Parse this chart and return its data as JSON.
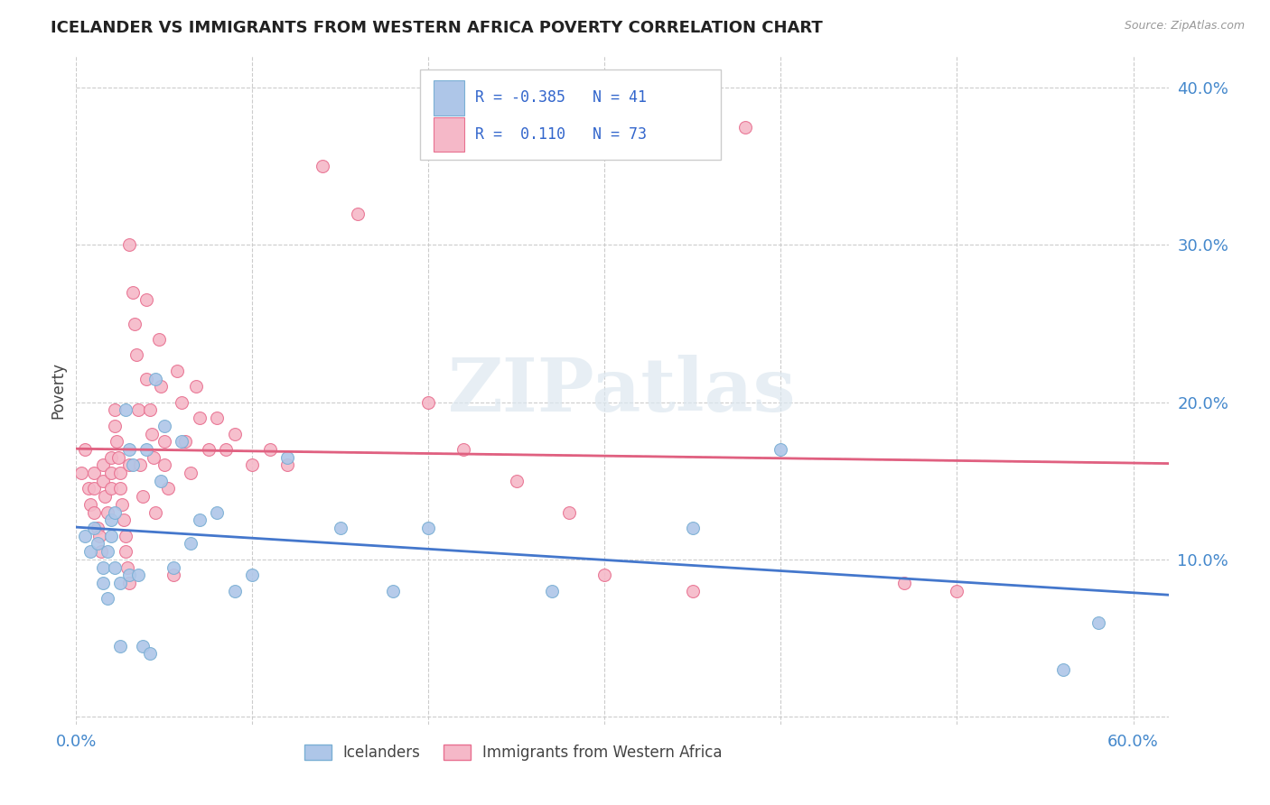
{
  "title": "ICELANDER VS IMMIGRANTS FROM WESTERN AFRICA POVERTY CORRELATION CHART",
  "source": "Source: ZipAtlas.com",
  "ylabel": "Poverty",
  "xlim": [
    0.0,
    0.62
  ],
  "ylim": [
    -0.005,
    0.42
  ],
  "x_ticks": [
    0.0,
    0.1,
    0.2,
    0.3,
    0.4,
    0.5,
    0.6
  ],
  "y_ticks": [
    0.0,
    0.1,
    0.2,
    0.3,
    0.4
  ],
  "x_tick_labels": [
    "0.0%",
    "",
    "",
    "",
    "",
    "",
    "60.0%"
  ],
  "y_tick_labels": [
    "",
    "10.0%",
    "20.0%",
    "30.0%",
    "40.0%"
  ],
  "background_color": "#ffffff",
  "grid_color": "#cccccc",
  "watermark": "ZIPatlas",
  "icelanders_color": "#aec6e8",
  "immigrants_color": "#f5b8c8",
  "icelanders_edge": "#7aafd4",
  "immigrants_edge": "#e87090",
  "ice_line_color": "#4477cc",
  "imm_line_color": "#e06080",
  "imm_dash_color": "#e0b0c0",
  "R_icelanders": -0.385,
  "N_icelanders": 41,
  "R_immigrants": 0.11,
  "N_immigrants": 73,
  "legend_labels": [
    "Icelanders",
    "Immigrants from Western Africa"
  ],
  "icelanders_x": [
    0.005,
    0.008,
    0.01,
    0.012,
    0.015,
    0.015,
    0.018,
    0.018,
    0.02,
    0.02,
    0.022,
    0.022,
    0.025,
    0.025,
    0.028,
    0.03,
    0.03,
    0.032,
    0.035,
    0.038,
    0.04,
    0.042,
    0.045,
    0.048,
    0.05,
    0.055,
    0.06,
    0.065,
    0.07,
    0.08,
    0.09,
    0.1,
    0.12,
    0.15,
    0.18,
    0.2,
    0.27,
    0.35,
    0.4,
    0.56,
    0.58
  ],
  "icelanders_y": [
    0.115,
    0.105,
    0.12,
    0.11,
    0.095,
    0.085,
    0.105,
    0.075,
    0.125,
    0.115,
    0.13,
    0.095,
    0.085,
    0.045,
    0.195,
    0.17,
    0.09,
    0.16,
    0.09,
    0.045,
    0.17,
    0.04,
    0.215,
    0.15,
    0.185,
    0.095,
    0.175,
    0.11,
    0.125,
    0.13,
    0.08,
    0.09,
    0.165,
    0.12,
    0.08,
    0.12,
    0.08,
    0.12,
    0.17,
    0.03,
    0.06
  ],
  "immigrants_x": [
    0.003,
    0.005,
    0.007,
    0.008,
    0.01,
    0.01,
    0.01,
    0.012,
    0.013,
    0.014,
    0.015,
    0.015,
    0.016,
    0.018,
    0.02,
    0.02,
    0.02,
    0.022,
    0.022,
    0.023,
    0.024,
    0.025,
    0.025,
    0.026,
    0.027,
    0.028,
    0.028,
    0.029,
    0.03,
    0.03,
    0.03,
    0.032,
    0.033,
    0.034,
    0.035,
    0.036,
    0.038,
    0.04,
    0.04,
    0.042,
    0.043,
    0.044,
    0.045,
    0.047,
    0.048,
    0.05,
    0.05,
    0.052,
    0.055,
    0.057,
    0.06,
    0.062,
    0.065,
    0.068,
    0.07,
    0.075,
    0.08,
    0.085,
    0.09,
    0.1,
    0.11,
    0.12,
    0.14,
    0.16,
    0.2,
    0.22,
    0.25,
    0.28,
    0.3,
    0.35,
    0.38,
    0.47,
    0.5
  ],
  "immigrants_y": [
    0.155,
    0.17,
    0.145,
    0.135,
    0.155,
    0.145,
    0.13,
    0.12,
    0.115,
    0.105,
    0.16,
    0.15,
    0.14,
    0.13,
    0.165,
    0.155,
    0.145,
    0.195,
    0.185,
    0.175,
    0.165,
    0.155,
    0.145,
    0.135,
    0.125,
    0.115,
    0.105,
    0.095,
    0.085,
    0.16,
    0.3,
    0.27,
    0.25,
    0.23,
    0.195,
    0.16,
    0.14,
    0.265,
    0.215,
    0.195,
    0.18,
    0.165,
    0.13,
    0.24,
    0.21,
    0.175,
    0.16,
    0.145,
    0.09,
    0.22,
    0.2,
    0.175,
    0.155,
    0.21,
    0.19,
    0.17,
    0.19,
    0.17,
    0.18,
    0.16,
    0.17,
    0.16,
    0.35,
    0.32,
    0.2,
    0.17,
    0.15,
    0.13,
    0.09,
    0.08,
    0.375,
    0.085,
    0.08
  ]
}
